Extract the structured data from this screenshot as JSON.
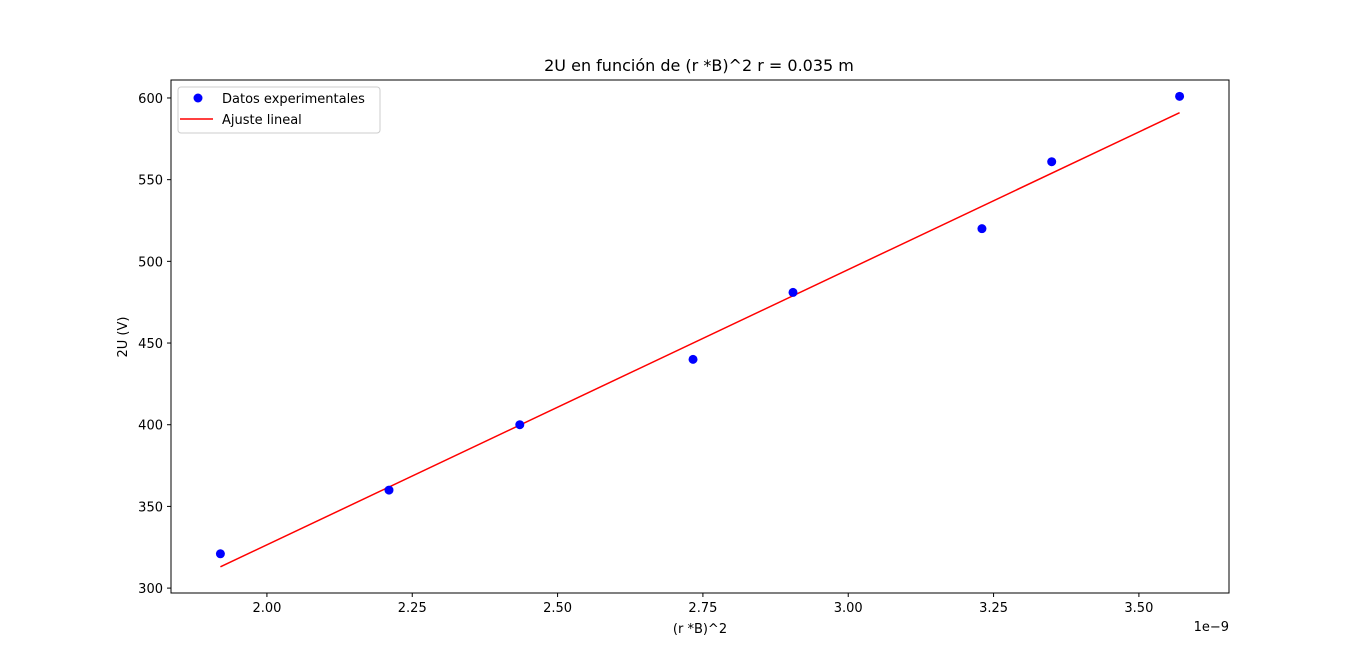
{
  "chart_data": {
    "type": "scatter",
    "title": "2U en función de (r *B)^2 r = 0.035 m",
    "xlabel": "(r *B)^2",
    "ylabel": "2U (V)",
    "x_offset_label": "1e−9",
    "xlim": [
      1.835,
      3.655
    ],
    "ylim": [
      297,
      611
    ],
    "xticks": [
      2.0,
      2.25,
      2.5,
      2.75,
      3.0,
      3.25,
      3.5
    ],
    "xtick_labels": [
      "2.00",
      "2.25",
      "2.50",
      "2.75",
      "3.00",
      "3.25",
      "3.50"
    ],
    "yticks": [
      300,
      350,
      400,
      450,
      500,
      550,
      600
    ],
    "ytick_labels": [
      "300",
      "350",
      "400",
      "450",
      "500",
      "550",
      "600"
    ],
    "x_scale_note": "x values multiplied by 1e-9",
    "series": [
      {
        "name": "Datos experimentales",
        "kind": "scatter",
        "color": "#0000ff",
        "x": [
          1.92,
          2.21,
          2.435,
          2.733,
          2.905,
          3.23,
          3.35,
          3.57
        ],
        "y": [
          321,
          360,
          400,
          440,
          481,
          520,
          561,
          601
        ]
      },
      {
        "name": "Ajuste lineal",
        "kind": "line",
        "color": "#ff0000",
        "x": [
          1.92,
          3.57
        ],
        "y": [
          313,
          591
        ]
      }
    ],
    "legend": "top-left",
    "grid": false
  }
}
